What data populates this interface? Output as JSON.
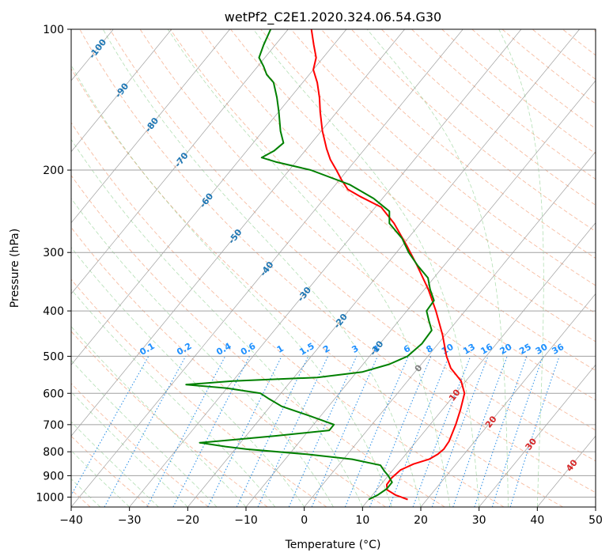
{
  "chart_data": {
    "type": "skew-t",
    "title": "wetPf2_C2E1.2020.324.06.54.G30",
    "xlabel": "Temperature (°C)",
    "ylabel": "Pressure (hPa)",
    "xlim": [
      -40,
      50
    ],
    "ylim": [
      1050,
      100
    ],
    "x_ticks": [
      -40,
      -30,
      -20,
      -10,
      0,
      10,
      20,
      30,
      40,
      50
    ],
    "y_ticks": [
      100,
      200,
      300,
      400,
      500,
      600,
      700,
      800,
      900,
      1000
    ],
    "grid": true,
    "series": [
      {
        "color": "#FF0000",
        "points": [
          [
            1012,
            16.7
          ],
          [
            990,
            14.0
          ],
          [
            965,
            11.8
          ],
          [
            940,
            11.0
          ],
          [
            910,
            10.9
          ],
          [
            875,
            11.3
          ],
          [
            850,
            12.7
          ],
          [
            830,
            14.7
          ],
          [
            810,
            15.5
          ],
          [
            790,
            15.8
          ],
          [
            760,
            15.6
          ],
          [
            700,
            14.4
          ],
          [
            650,
            13.1
          ],
          [
            600,
            11.5
          ],
          [
            565,
            9.2
          ],
          [
            530,
            5.6
          ],
          [
            500,
            3.2
          ],
          [
            450,
            -0.5
          ],
          [
            400,
            -5.0
          ],
          [
            360,
            -9.3
          ],
          [
            320,
            -14.6
          ],
          [
            290,
            -19.2
          ],
          [
            260,
            -24.5
          ],
          [
            240,
            -29.0
          ],
          [
            228,
            -34.0
          ],
          [
            220,
            -37.2
          ],
          [
            210,
            -39.6
          ],
          [
            200,
            -41.9
          ],
          [
            190,
            -44.4
          ],
          [
            180,
            -46.6
          ],
          [
            165,
            -49.8
          ],
          [
            150,
            -52.9
          ],
          [
            140,
            -55.0
          ],
          [
            130,
            -57.5
          ],
          [
            122,
            -60.0
          ],
          [
            115,
            -61.2
          ],
          [
            108,
            -63.4
          ],
          [
            100,
            -66.0
          ]
        ]
      },
      {
        "color": "#008000",
        "points": [
          [
            1012,
            10.0
          ],
          [
            990,
            10.9
          ],
          [
            960,
            11.6
          ],
          [
            930,
            11.6
          ],
          [
            900,
            10.0
          ],
          [
            880,
            8.7
          ],
          [
            855,
            7.2
          ],
          [
            830,
            1.5
          ],
          [
            810,
            -7.0
          ],
          [
            790,
            -18.0
          ],
          [
            780,
            -22.0
          ],
          [
            765,
            -27.0
          ],
          [
            755,
            -22.0
          ],
          [
            740,
            -15.0
          ],
          [
            720,
            -6.5
          ],
          [
            700,
            -6.5
          ],
          [
            670,
            -12.0
          ],
          [
            640,
            -18.0
          ],
          [
            615,
            -21.5
          ],
          [
            600,
            -23.5
          ],
          [
            585,
            -30.0
          ],
          [
            575,
            -37.5
          ],
          [
            565,
            -30.0
          ],
          [
            555,
            -16.0
          ],
          [
            540,
            -9.0
          ],
          [
            520,
            -5.5
          ],
          [
            500,
            -3.5
          ],
          [
            470,
            -2.8
          ],
          [
            440,
            -3.0
          ],
          [
            420,
            -4.8
          ],
          [
            400,
            -6.6
          ],
          [
            380,
            -6.8
          ],
          [
            360,
            -9.0
          ],
          [
            340,
            -11.0
          ],
          [
            320,
            -14.5
          ],
          [
            300,
            -17.9
          ],
          [
            280,
            -21.0
          ],
          [
            260,
            -25.3
          ],
          [
            245,
            -27.0
          ],
          [
            230,
            -31.5
          ],
          [
            215,
            -37.5
          ],
          [
            200,
            -46.3
          ],
          [
            192,
            -53.5
          ],
          [
            188,
            -56.5
          ],
          [
            182,
            -55.3
          ],
          [
            175,
            -54.8
          ],
          [
            165,
            -57.0
          ],
          [
            150,
            -60.0
          ],
          [
            140,
            -62.3
          ],
          [
            130,
            -65.0
          ],
          [
            125,
            -67.3
          ],
          [
            120,
            -69.0
          ],
          [
            115,
            -71.0
          ],
          [
            108,
            -72.0
          ],
          [
            100,
            -73.0
          ]
        ]
      }
    ],
    "isotherms_labeled": [
      -100,
      -90,
      -80,
      -70,
      -60,
      -50,
      -40,
      -30,
      -20,
      -10,
      0,
      10,
      20,
      30,
      40
    ],
    "mixing_ratio_labels": [
      "0.1",
      "0.2",
      "0.4",
      "0.6",
      "1",
      "1.5",
      "2",
      "3",
      "4",
      "6",
      "8",
      "10",
      "13",
      "16",
      "20",
      "25",
      "30",
      "36"
    ]
  }
}
